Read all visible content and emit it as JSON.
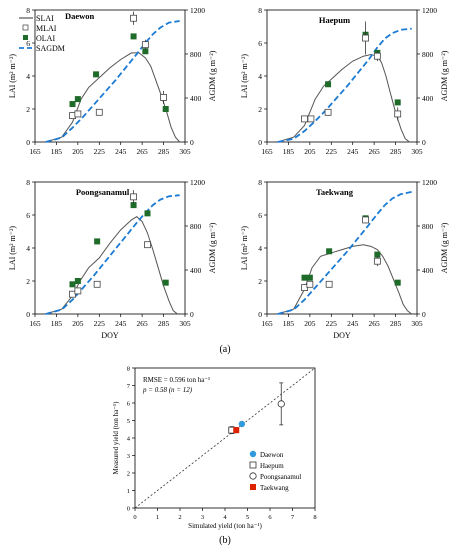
{
  "figure": {
    "label_a": "(a)",
    "label_b": "(b)"
  },
  "legend_a": {
    "slai": "SLAI",
    "mlai": "MLAI",
    "olai": "OLAI",
    "sagdm": "SAGDM"
  },
  "colors": {
    "green": "#1f6b2a",
    "blue": "#1a7ad4",
    "slai_line": "#555555",
    "cyan_dot": "#3399dd",
    "red_square": "#dd2200"
  },
  "chart_data": [
    {
      "type": "line",
      "panel": "Daewon",
      "title": "Daewon",
      "xlabel": "",
      "ylabel_left": "LAI (m² m⁻²)",
      "ylabel_right": "AGDM (g m⁻²)",
      "xlim": [
        165,
        305
      ],
      "xticks": [
        165,
        185,
        205,
        225,
        245,
        265,
        285,
        305
      ],
      "ylim_left": [
        0,
        8
      ],
      "yticks_left": [
        0,
        2,
        4,
        6,
        8
      ],
      "ylim_right": [
        0,
        1200
      ],
      "yticks_right": [
        0,
        400,
        800,
        1200
      ],
      "series": [
        {
          "name": "SLAI",
          "x": [
            175,
            190,
            200,
            208,
            215,
            225,
            235,
            245,
            255,
            262,
            268,
            273,
            278,
            283,
            288,
            292,
            296,
            300
          ],
          "y": [
            0,
            0.3,
            1.2,
            2.6,
            3.3,
            3.9,
            4.5,
            5.0,
            5.4,
            5.4,
            5.1,
            4.6,
            3.7,
            2.8,
            1.8,
            0.9,
            0.3,
            0
          ]
        },
        {
          "name": "MLAI",
          "x": [
            200,
            205,
            225,
            257,
            268,
            285
          ],
          "y": [
            1.6,
            1.7,
            1.8,
            7.5,
            5.9,
            2.7
          ],
          "err": [
            0.15,
            0.15,
            0.1,
            0.4,
            0.3,
            0.4
          ]
        },
        {
          "name": "OLAI",
          "x": [
            200,
            205,
            222,
            257,
            268,
            287
          ],
          "y": [
            2.3,
            2.6,
            4.1,
            6.4,
            5.5,
            2.0
          ]
        },
        {
          "name": "SAGDM",
          "x": [
            175,
            190,
            200,
            210,
            220,
            230,
            240,
            250,
            260,
            268,
            275,
            282,
            290,
            300
          ],
          "y": [
            0,
            40,
            130,
            230,
            340,
            450,
            560,
            680,
            800,
            900,
            980,
            1040,
            1085,
            1100
          ]
        }
      ]
    },
    {
      "type": "line",
      "panel": "Haepum",
      "title": "Haepum",
      "xlabel": "",
      "ylabel_left": "LAI (m² m⁻²)",
      "ylabel_right": "AGDM (g m⁻²)",
      "xlim": [
        165,
        305
      ],
      "xticks": [
        165,
        185,
        205,
        225,
        245,
        265,
        285,
        305
      ],
      "ylim_left": [
        0,
        8
      ],
      "yticks_left": [
        0,
        2,
        4,
        6,
        8
      ],
      "ylim_right": [
        0,
        1200
      ],
      "yticks_right": [
        0,
        400,
        800,
        1200
      ],
      "series": [
        {
          "name": "SLAI",
          "x": [
            175,
            190,
            200,
            210,
            218,
            225,
            235,
            245,
            255,
            262,
            268,
            272,
            276,
            280,
            285,
            290,
            294,
            298
          ],
          "y": [
            0,
            0.3,
            1.0,
            2.6,
            3.4,
            3.8,
            4.4,
            4.9,
            5.2,
            5.3,
            5.2,
            4.8,
            4.0,
            3.0,
            1.8,
            0.8,
            0.2,
            0
          ]
        },
        {
          "name": "MLAI",
          "x": [
            200,
            206,
            222,
            257,
            268,
            287
          ],
          "y": [
            1.4,
            1.4,
            1.8,
            6.3,
            5.2,
            1.7
          ],
          "err": [
            0.1,
            0.1,
            0.2,
            1.0,
            0.3,
            0.4
          ]
        },
        {
          "name": "OLAI",
          "x": [
            200,
            206,
            222,
            257,
            268,
            287
          ],
          "y": [
            1.4,
            1.4,
            3.5,
            6.5,
            5.4,
            2.4
          ]
        },
        {
          "name": "SAGDM",
          "x": [
            175,
            190,
            200,
            210,
            220,
            230,
            240,
            250,
            260,
            268,
            275,
            282,
            290,
            300
          ],
          "y": [
            0,
            30,
            100,
            190,
            290,
            400,
            510,
            630,
            750,
            860,
            940,
            990,
            1020,
            1030
          ]
        }
      ]
    },
    {
      "type": "line",
      "panel": "Poongsanamul",
      "title": "Poongsanamul",
      "xlabel": "DOY",
      "ylabel_left": "LAI (m² m⁻²)",
      "ylabel_right": "AGDM (g m⁻²)",
      "xlim": [
        165,
        305
      ],
      "xticks": [
        165,
        185,
        205,
        225,
        245,
        265,
        285,
        305
      ],
      "ylim_left": [
        0,
        8
      ],
      "yticks_left": [
        0,
        2,
        4,
        6,
        8
      ],
      "ylim_right": [
        0,
        1200
      ],
      "yticks_right": [
        0,
        400,
        800,
        1200
      ],
      "series": [
        {
          "name": "SLAI",
          "x": [
            175,
            190,
            200,
            207,
            215,
            225,
            235,
            245,
            255,
            260,
            265,
            270,
            275,
            280,
            285,
            290,
            294,
            298
          ],
          "y": [
            0,
            0.3,
            1.1,
            2.0,
            2.8,
            3.4,
            4.3,
            5.1,
            5.7,
            5.9,
            5.6,
            4.9,
            3.9,
            2.8,
            1.7,
            0.8,
            0.2,
            0
          ]
        },
        {
          "name": "MLAI",
          "x": [
            200,
            205,
            223,
            257,
            270
          ],
          "y": [
            1.2,
            1.4,
            1.8,
            7.1,
            4.2
          ],
          "err": [
            0.2,
            0.2,
            0.1,
            0.4,
            0.1
          ]
        },
        {
          "name": "OLAI",
          "x": [
            200,
            205,
            223,
            257,
            270,
            287
          ],
          "y": [
            1.8,
            2.0,
            4.4,
            6.6,
            6.1,
            1.9
          ]
        },
        {
          "name": "SAGDM",
          "x": [
            175,
            190,
            200,
            210,
            220,
            230,
            240,
            250,
            260,
            268,
            275,
            282,
            290,
            300
          ],
          "y": [
            0,
            40,
            130,
            240,
            350,
            470,
            590,
            710,
            830,
            920,
            990,
            1040,
            1070,
            1080
          ]
        }
      ]
    },
    {
      "type": "line",
      "panel": "Taekwang",
      "title": "Taekwang",
      "xlabel": "DOY",
      "ylabel_left": "LAI (m² m⁻²)",
      "ylabel_right": "AGDM (g m⁻²)",
      "xlim": [
        165,
        305
      ],
      "xticks": [
        165,
        185,
        205,
        225,
        245,
        265,
        285,
        305
      ],
      "ylim_left": [
        0,
        8
      ],
      "yticks_left": [
        0,
        2,
        4,
        6,
        8
      ],
      "ylim_right": [
        0,
        1200
      ],
      "yticks_right": [
        0,
        400,
        800,
        1200
      ],
      "series": [
        {
          "name": "SLAI",
          "x": [
            175,
            190,
            200,
            207,
            215,
            225,
            235,
            245,
            255,
            262,
            268,
            273,
            278,
            283,
            288,
            292,
            296,
            300
          ],
          "y": [
            0,
            0.3,
            1.5,
            2.8,
            3.5,
            3.7,
            3.9,
            4.1,
            4.2,
            4.1,
            3.9,
            3.5,
            2.9,
            2.1,
            1.3,
            0.6,
            0.2,
            0
          ]
        },
        {
          "name": "MLAI",
          "x": [
            200,
            205,
            223,
            257,
            268
          ],
          "y": [
            1.6,
            1.8,
            1.8,
            5.7,
            3.2
          ],
          "err": [
            0.15,
            0.15,
            0.2,
            0.2,
            0.3
          ]
        },
        {
          "name": "OLAI",
          "x": [
            200,
            205,
            223,
            257,
            268,
            287
          ],
          "y": [
            2.2,
            2.2,
            3.8,
            5.8,
            3.6,
            1.9
          ]
        },
        {
          "name": "SAGDM",
          "x": [
            175,
            190,
            200,
            210,
            220,
            230,
            240,
            250,
            260,
            268,
            275,
            282,
            290,
            300
          ],
          "y": [
            0,
            40,
            130,
            240,
            350,
            460,
            570,
            690,
            810,
            910,
            990,
            1050,
            1090,
            1110
          ]
        }
      ]
    },
    {
      "type": "scatter",
      "panel": "yield",
      "title": "",
      "xlabel": "Simulated yield (ton ha⁻¹)",
      "ylabel": "Measured yield (ton ha⁻¹)",
      "xlim": [
        0,
        8
      ],
      "ylim": [
        0,
        8
      ],
      "xticks": [
        0,
        1,
        2,
        3,
        4,
        5,
        6,
        7,
        8
      ],
      "yticks": [
        0,
        1,
        2,
        3,
        4,
        5,
        6,
        7,
        8
      ],
      "annotations": [
        "RMSE = 0.596  ton ha⁻¹",
        "p = 0.58  (n = 12)"
      ],
      "one_to_one_line": true,
      "series": [
        {
          "name": "Daewon",
          "x": [
            4.75
          ],
          "y": [
            4.8
          ],
          "err": [
            0.1
          ]
        },
        {
          "name": "Haepum",
          "x": [
            4.3
          ],
          "y": [
            4.45
          ],
          "err": [
            0.2
          ]
        },
        {
          "name": "Poongsanamul",
          "x": [
            6.5
          ],
          "y": [
            5.95
          ],
          "err": [
            1.2
          ]
        },
        {
          "name": "Taekwang",
          "x": [
            4.5
          ],
          "y": [
            4.45
          ],
          "err": [
            0.15
          ]
        }
      ]
    }
  ]
}
